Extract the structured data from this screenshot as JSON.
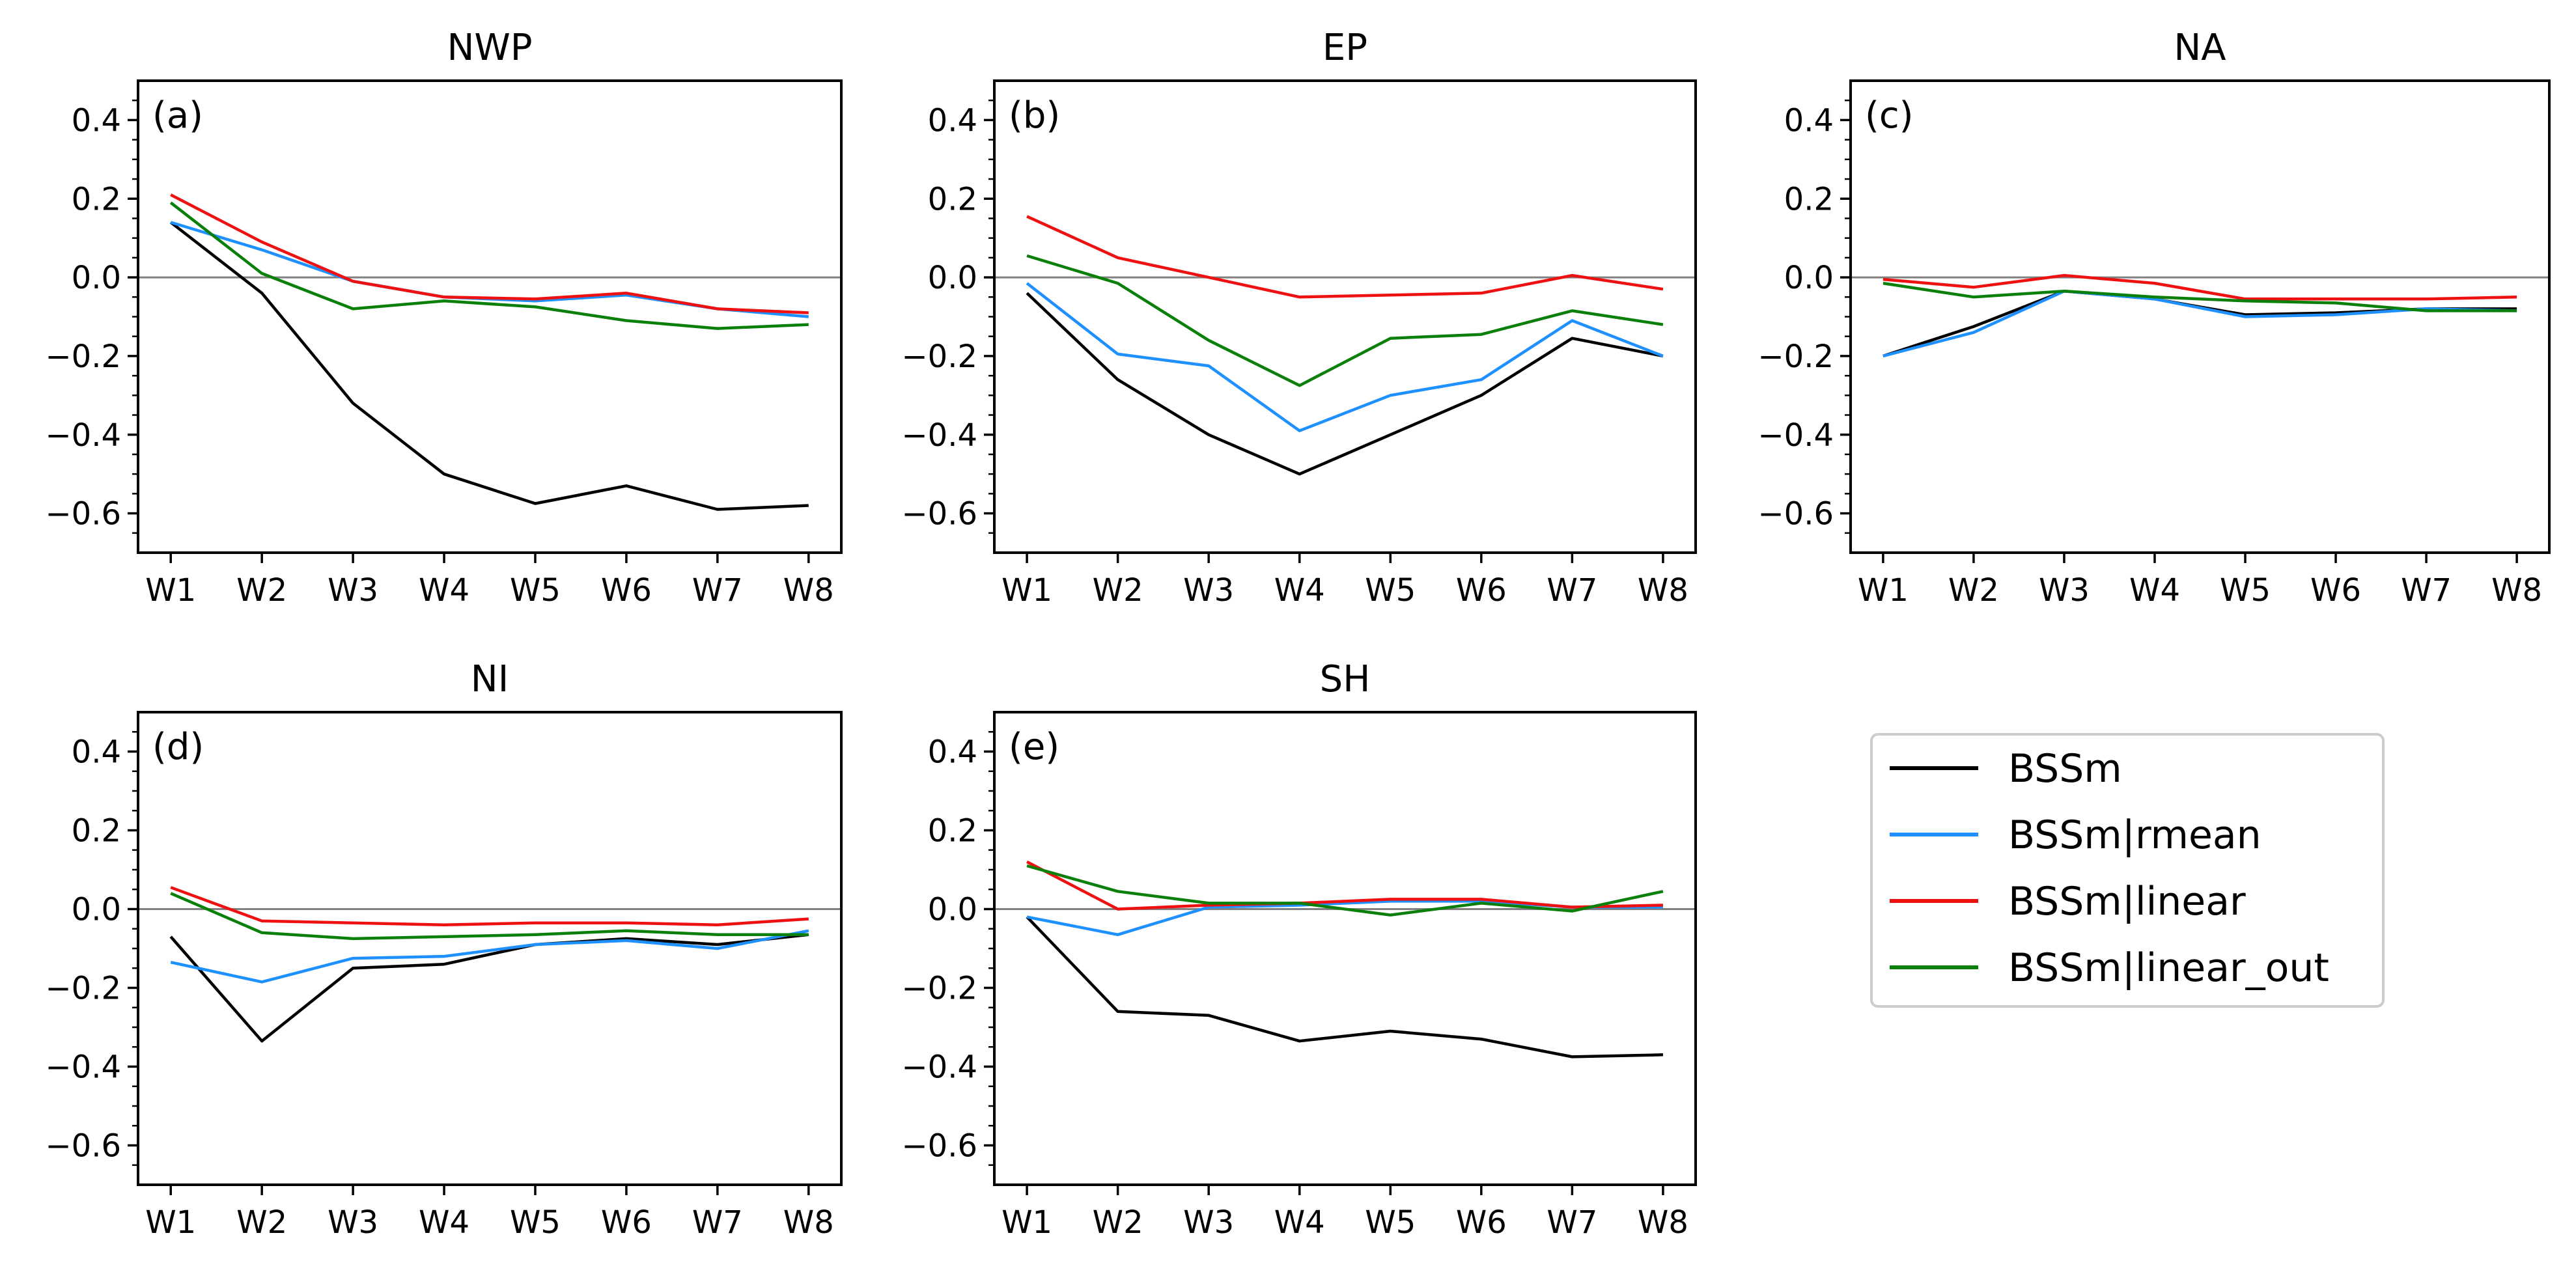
{
  "figure": {
    "legend_location": "bottom-right empty slot"
  },
  "colors": {
    "BSSm": "#000000",
    "BSSm|rmean": "#1e90ff",
    "BSSm|linear": "#ee1111",
    "BSSm|linear_out": "#0a800a",
    "zero_line": "#808080"
  },
  "chart_data": [
    {
      "type": "line",
      "title": "NWP",
      "tag": "(a)",
      "categories": [
        "W1",
        "W2",
        "W3",
        "W4",
        "W5",
        "W6",
        "W7",
        "W8"
      ],
      "ylim": [
        -0.7,
        0.5
      ],
      "yticks": [
        "0.4",
        "0.2",
        "0.0",
        "−0.2",
        "−0.4",
        "−0.6"
      ],
      "grid": false,
      "series": [
        {
          "name": "BSSm",
          "values": [
            0.14,
            -0.04,
            -0.32,
            -0.5,
            -0.575,
            -0.53,
            -0.59,
            -0.58
          ]
        },
        {
          "name": "BSSm|rmean",
          "values": [
            0.14,
            0.07,
            -0.01,
            -0.05,
            -0.06,
            -0.045,
            -0.08,
            -0.1
          ]
        },
        {
          "name": "BSSm|linear",
          "values": [
            0.21,
            0.09,
            -0.01,
            -0.05,
            -0.055,
            -0.04,
            -0.08,
            -0.09
          ]
        },
        {
          "name": "BSSm|linear_out",
          "values": [
            0.19,
            0.01,
            -0.08,
            -0.06,
            -0.075,
            -0.11,
            -0.13,
            -0.12
          ]
        }
      ]
    },
    {
      "type": "line",
      "title": "EP",
      "tag": "(b)",
      "categories": [
        "W1",
        "W2",
        "W3",
        "W4",
        "W5",
        "W6",
        "W7",
        "W8"
      ],
      "ylim": [
        -0.7,
        0.5
      ],
      "yticks": [
        "0.4",
        "0.2",
        "0.0",
        "−0.2",
        "−0.4",
        "−0.6"
      ],
      "grid": false,
      "series": [
        {
          "name": "BSSm",
          "values": [
            -0.04,
            -0.26,
            -0.4,
            -0.5,
            -0.4,
            -0.3,
            -0.155,
            -0.2
          ]
        },
        {
          "name": "BSSm|rmean",
          "values": [
            -0.015,
            -0.195,
            -0.225,
            -0.39,
            -0.3,
            -0.26,
            -0.11,
            -0.2
          ]
        },
        {
          "name": "BSSm|linear",
          "values": [
            0.155,
            0.05,
            0.0,
            -0.05,
            -0.045,
            -0.04,
            0.005,
            -0.03
          ]
        },
        {
          "name": "BSSm|linear_out",
          "values": [
            0.055,
            -0.015,
            -0.16,
            -0.275,
            -0.155,
            -0.145,
            -0.085,
            -0.12
          ]
        }
      ]
    },
    {
      "type": "line",
      "title": "NA",
      "tag": "(c)",
      "categories": [
        "W1",
        "W2",
        "W3",
        "W4",
        "W5",
        "W6",
        "W7",
        "W8"
      ],
      "ylim": [
        -0.7,
        0.5
      ],
      "yticks": [
        "0.4",
        "0.2",
        "0.0",
        "−0.2",
        "−0.4",
        "−0.6"
      ],
      "grid": false,
      "series": [
        {
          "name": "BSSm",
          "values": [
            -0.2,
            -0.125,
            -0.035,
            -0.055,
            -0.095,
            -0.09,
            -0.08,
            -0.08
          ]
        },
        {
          "name": "BSSm|rmean",
          "values": [
            -0.2,
            -0.14,
            -0.035,
            -0.055,
            -0.1,
            -0.095,
            -0.08,
            -0.085
          ]
        },
        {
          "name": "BSSm|linear",
          "values": [
            -0.005,
            -0.025,
            0.005,
            -0.015,
            -0.055,
            -0.055,
            -0.055,
            -0.05
          ]
        },
        {
          "name": "BSSm|linear_out",
          "values": [
            -0.015,
            -0.05,
            -0.035,
            -0.05,
            -0.06,
            -0.065,
            -0.085,
            -0.085
          ]
        }
      ]
    },
    {
      "type": "line",
      "title": "NI",
      "tag": "(d)",
      "categories": [
        "W1",
        "W2",
        "W3",
        "W4",
        "W5",
        "W6",
        "W7",
        "W8"
      ],
      "ylim": [
        -0.7,
        0.5
      ],
      "yticks": [
        "0.4",
        "0.2",
        "0.0",
        "−0.2",
        "−0.4",
        "−0.6"
      ],
      "grid": false,
      "series": [
        {
          "name": "BSSm",
          "values": [
            -0.07,
            -0.335,
            -0.15,
            -0.14,
            -0.09,
            -0.075,
            -0.09,
            -0.065
          ]
        },
        {
          "name": "BSSm|rmean",
          "values": [
            -0.135,
            -0.185,
            -0.125,
            -0.12,
            -0.09,
            -0.08,
            -0.1,
            -0.055
          ]
        },
        {
          "name": "BSSm|linear",
          "values": [
            0.055,
            -0.03,
            -0.035,
            -0.04,
            -0.035,
            -0.035,
            -0.04,
            -0.025
          ]
        },
        {
          "name": "BSSm|linear_out",
          "values": [
            0.04,
            -0.06,
            -0.075,
            -0.07,
            -0.065,
            -0.055,
            -0.065,
            -0.065
          ]
        }
      ]
    },
    {
      "type": "line",
      "title": "SH",
      "tag": "(e)",
      "categories": [
        "W1",
        "W2",
        "W3",
        "W4",
        "W5",
        "W6",
        "W7",
        "W8"
      ],
      "ylim": [
        -0.7,
        0.5
      ],
      "yticks": [
        "0.4",
        "0.2",
        "0.0",
        "−0.2",
        "−0.4",
        "−0.6"
      ],
      "grid": false,
      "series": [
        {
          "name": "BSSm",
          "values": [
            -0.02,
            -0.26,
            -0.27,
            -0.335,
            -0.31,
            -0.33,
            -0.375,
            -0.37
          ]
        },
        {
          "name": "BSSm|rmean",
          "values": [
            -0.02,
            -0.065,
            0.005,
            0.01,
            0.02,
            0.02,
            0.005,
            0.005
          ]
        },
        {
          "name": "BSSm|linear",
          "values": [
            0.12,
            0.0,
            0.01,
            0.015,
            0.025,
            0.025,
            0.005,
            0.01
          ]
        },
        {
          "name": "BSSm|linear_out",
          "values": [
            0.11,
            0.045,
            0.015,
            0.015,
            -0.015,
            0.015,
            -0.005,
            0.045
          ]
        }
      ]
    }
  ],
  "legend": {
    "entries": [
      "BSSm",
      "BSSm|rmean",
      "BSSm|linear",
      "BSSm|linear_out"
    ]
  }
}
